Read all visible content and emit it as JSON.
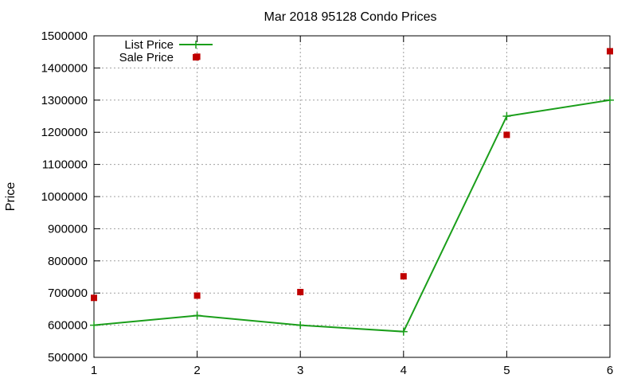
{
  "chart_data": {
    "type": "line",
    "title": "Mar 2018 95128 Condo Prices",
    "xlabel": "",
    "ylabel": "Price",
    "x": [
      1,
      2,
      3,
      4,
      5,
      6
    ],
    "xlim": [
      1,
      6
    ],
    "ylim": [
      500000,
      1500000
    ],
    "xticks": [
      "1",
      "2",
      "3",
      "4",
      "5",
      "6"
    ],
    "yticks": [
      "500000",
      "600000",
      "700000",
      "800000",
      "900000",
      "1000000",
      "1100000",
      "1200000",
      "1300000",
      "1400000",
      "1500000"
    ],
    "grid": true,
    "legend_position": "top-left",
    "series": [
      {
        "name": "List Price",
        "style": "line+cross",
        "color": "#1a9e1a",
        "values": [
          600000,
          630000,
          600000,
          580000,
          1250000,
          1300000
        ]
      },
      {
        "name": "Sale Price",
        "style": "square",
        "color": "#c00000",
        "values": [
          685000,
          692000,
          703000,
          752000,
          1192000,
          1452000
        ]
      }
    ]
  },
  "extra_points": [
    {
      "series": 1,
      "x": 2,
      "y": 1435000
    }
  ]
}
